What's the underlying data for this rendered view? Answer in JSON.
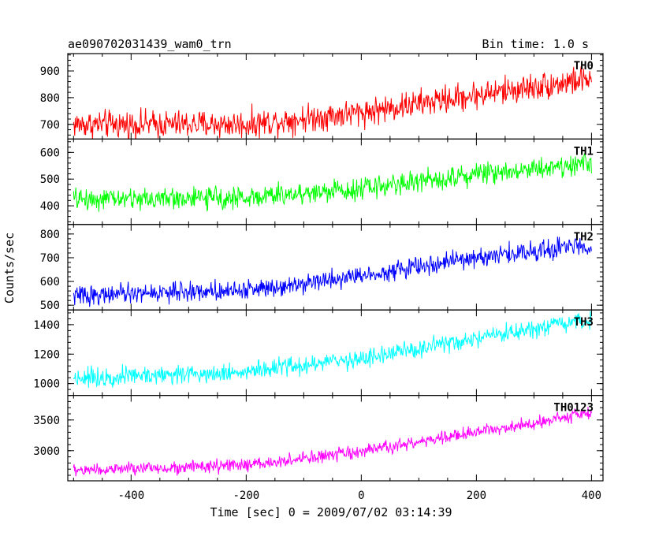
{
  "chart_data": {
    "type": "line",
    "title": "ae090702031439_wam0_trn",
    "subtitle": "Bin time: 1.0 s",
    "xlabel": "Time [sec] 0 = 2009/07/02 03:14:39",
    "ylabel": "Counts/sec",
    "xlim": [
      -510,
      420
    ],
    "xticks": [
      -400,
      -200,
      0,
      200,
      400
    ],
    "grid": false,
    "bin_time_s": 1.0,
    "x_start": -500,
    "x_end": 400,
    "panels": [
      {
        "name": "TH0",
        "color": "#ff0000",
        "ylim": [
          645,
          965
        ],
        "yticks": [
          700,
          800,
          900
        ],
        "trend_x": [
          -500,
          -200,
          0,
          200,
          400
        ],
        "trend_y": [
          700,
          700,
          745,
          810,
          870
        ],
        "noise_amplitude": 45
      },
      {
        "name": "TH1",
        "color": "#00ff00",
        "ylim": [
          330,
          650
        ],
        "yticks": [
          400,
          500,
          600
        ],
        "trend_x": [
          -500,
          -200,
          0,
          200,
          400
        ],
        "trend_y": [
          425,
          430,
          465,
          520,
          560
        ],
        "noise_amplitude": 35
      },
      {
        "name": "TH2",
        "color": "#0000ff",
        "ylim": [
          480,
          840
        ],
        "yticks": [
          500,
          600,
          700,
          800
        ],
        "trend_x": [
          -500,
          -200,
          0,
          200,
          400
        ],
        "trend_y": [
          540,
          565,
          625,
          700,
          755
        ],
        "noise_amplitude": 35
      },
      {
        "name": "TH3",
        "color": "#00ffff",
        "ylim": [
          920,
          1500
        ],
        "yticks": [
          1000,
          1200,
          1400
        ],
        "trend_x": [
          -500,
          -200,
          0,
          200,
          400
        ],
        "trend_y": [
          1040,
          1080,
          1170,
          1300,
          1430
        ],
        "noise_amplitude": 55
      },
      {
        "name": "TH0123",
        "color": "#ff00ff",
        "ylim": [
          2510,
          3900
        ],
        "yticks": [
          3000,
          3500
        ],
        "trend_x": [
          -500,
          -200,
          0,
          200,
          400
        ],
        "trend_y": [
          2680,
          2760,
          2980,
          3300,
          3620
        ],
        "noise_amplitude": 90
      }
    ]
  }
}
